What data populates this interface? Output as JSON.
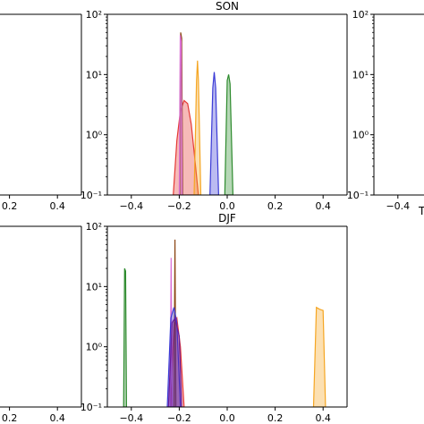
{
  "chart_data": [
    {
      "type": "area",
      "title": "SON",
      "xlabel": "",
      "ylabel": "",
      "y_scale": "log",
      "xlim": [
        -0.5,
        0.5
      ],
      "ylim": [
        0.1,
        100
      ],
      "xticks": [
        -0.4,
        -0.2,
        0.0,
        0.2,
        0.4
      ],
      "xtick_labels": [
        "−0.4",
        "−0.2",
        "0.0",
        "0.2",
        "0.4"
      ],
      "yticks": [
        0.1,
        1,
        10,
        100
      ],
      "ytick_labels": [
        "10⁻¹",
        "10⁰",
        "10¹",
        "10²"
      ],
      "grid": false,
      "series": [
        {
          "color": "#e53935",
          "x": [
            -0.225,
            -0.21,
            -0.195,
            -0.18,
            -0.165,
            -0.15,
            -0.135,
            -0.12
          ],
          "y": [
            0.1,
            0.8,
            2.5,
            3.7,
            3.3,
            1.5,
            0.4,
            0.1
          ]
        },
        {
          "color": "#8b4513",
          "x": [
            -0.198,
            -0.194,
            -0.19,
            -0.186
          ],
          "y": [
            0.1,
            50,
            40,
            0.1
          ]
        },
        {
          "color": "#da70d6",
          "x": [
            -0.2,
            -0.196,
            -0.192,
            -0.188
          ],
          "y": [
            0.1,
            45,
            35,
            0.1
          ]
        },
        {
          "color": "#f5a623",
          "x": [
            -0.138,
            -0.128,
            -0.124,
            -0.12,
            -0.11
          ],
          "y": [
            0.1,
            8,
            17,
            8,
            0.1
          ]
        },
        {
          "color": "#3b3bd6",
          "x": [
            -0.072,
            -0.06,
            -0.054,
            -0.048,
            -0.036
          ],
          "y": [
            0.1,
            6,
            11,
            6,
            0.1
          ]
        },
        {
          "color": "#2e8b2e",
          "x": [
            -0.01,
            0.0,
            0.006,
            0.012,
            0.024
          ],
          "y": [
            0.1,
            8,
            10,
            7,
            0.1
          ]
        }
      ]
    },
    {
      "type": "area",
      "title": "DJF",
      "xlabel": "",
      "ylabel": "",
      "y_scale": "log",
      "xlim": [
        -0.5,
        0.5
      ],
      "ylim": [
        0.1,
        100
      ],
      "xticks": [
        -0.4,
        -0.2,
        0.0,
        0.2,
        0.4
      ],
      "xtick_labels": [
        "−0.4",
        "−0.2",
        "0.0",
        "0.2",
        "0.4"
      ],
      "yticks": [
        0.1,
        1,
        10,
        100
      ],
      "ytick_labels": [
        "10⁻¹",
        "10⁰",
        "10¹",
        "10²"
      ],
      "grid": false,
      "series": [
        {
          "color": "#2e8b2e",
          "x": [
            -0.432,
            -0.428,
            -0.424,
            -0.42
          ],
          "y": [
            0.1,
            20,
            18,
            0.1
          ]
        },
        {
          "color": "#f5a623",
          "x": [
            0.36,
            0.372,
            0.385,
            0.4,
            0.41
          ],
          "y": [
            0.1,
            4.5,
            4.2,
            4.0,
            0.1
          ]
        },
        {
          "color": "#e53935",
          "x": [
            -0.236,
            -0.222,
            -0.21,
            -0.195,
            -0.18
          ],
          "y": [
            0.1,
            2.5,
            3.0,
            1.0,
            0.1
          ]
        },
        {
          "color": "#8b4513",
          "x": [
            -0.222,
            -0.218,
            -0.214
          ],
          "y": [
            0.1,
            60,
            0.1
          ]
        },
        {
          "color": "#da70d6",
          "x": [
            -0.238,
            -0.234,
            -0.23
          ],
          "y": [
            0.1,
            30,
            0.1
          ]
        },
        {
          "color": "#3b3bd6",
          "x": [
            -0.25,
            -0.235,
            -0.222,
            -0.21,
            -0.195
          ],
          "y": [
            0.1,
            3.0,
            4.5,
            2.5,
            0.1
          ]
        },
        {
          "color": "#6a1b9a",
          "x": [
            -0.245,
            -0.23,
            -0.218,
            -0.2,
            -0.19
          ],
          "y": [
            0.1,
            2.5,
            3.0,
            1.5,
            0.1
          ]
        }
      ]
    },
    {
      "type": "area",
      "title": "",
      "y_scale": "log",
      "xlim": [
        -0.5,
        0.5
      ],
      "xticks": [
        0.2,
        0.4
      ],
      "xtick_labels": [
        "0.2",
        "0.4"
      ],
      "yticks": [],
      "ytick_labels": [],
      "series": []
    },
    {
      "type": "area",
      "title": "",
      "y_scale": "log",
      "xlim": [
        -0.5,
        0.5
      ],
      "xticks": [
        0.2,
        0.4
      ],
      "xtick_labels": [
        "0.2",
        "0.4"
      ],
      "yticks": [],
      "ytick_labels": [],
      "series": []
    },
    {
      "type": "area",
      "title": "",
      "y_scale": "log",
      "xlim": [
        -0.5,
        0.5
      ],
      "ylim": [
        0.1,
        100
      ],
      "xticks": [
        -0.4
      ],
      "xtick_labels": [
        "−0.4"
      ],
      "yticks": [
        0.1,
        1,
        10,
        100
      ],
      "ytick_labels": [
        "10⁻¹",
        "10⁰",
        "10¹",
        "10²"
      ],
      "series": []
    }
  ],
  "clipped_text": "T"
}
